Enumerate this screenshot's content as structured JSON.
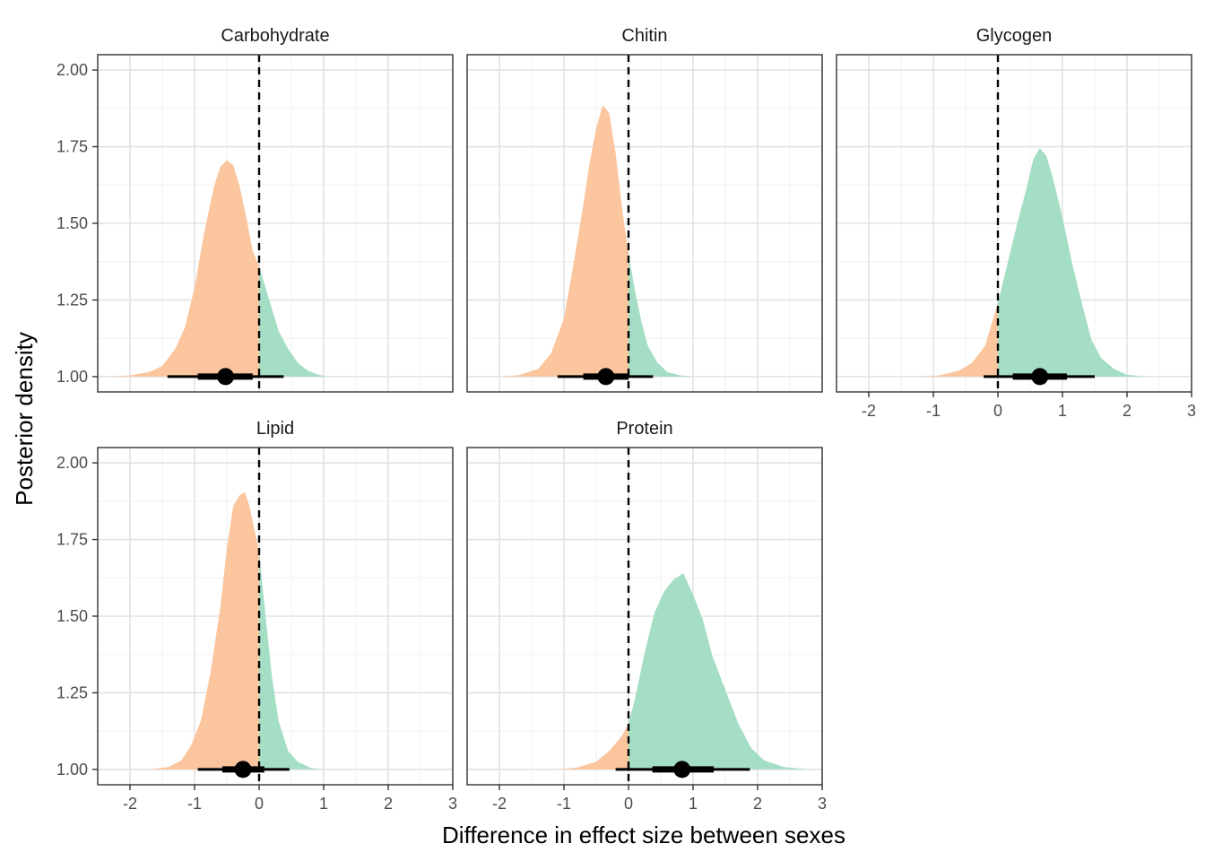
{
  "chart_data": {
    "type": "area",
    "xlabel": "Difference in effect size between sexes",
    "ylabel": "Posterior density",
    "xlim": [
      -2.5,
      3.0
    ],
    "ylim": [
      0.95,
      2.05
    ],
    "x_ticks": [
      "-2",
      "-1",
      "0",
      "1",
      "2",
      "3"
    ],
    "y_ticks": [
      "1.00",
      "1.25",
      "1.50",
      "1.75",
      "2.00"
    ],
    "reference_line_x": 0,
    "colors": {
      "negative": "#FBC59E",
      "positive": "#A4DEC4",
      "interval": "#000000",
      "reference": "#000000"
    },
    "grid": true,
    "panels": [
      {
        "name": "Carbohydrate",
        "density": {
          "x": [
            -2.3,
            -2.0,
            -1.7,
            -1.5,
            -1.3,
            -1.15,
            -1.0,
            -0.85,
            -0.7,
            -0.6,
            -0.5,
            -0.4,
            -0.3,
            -0.2,
            -0.1,
            0.0,
            0.1,
            0.2,
            0.3,
            0.45,
            0.6,
            0.75,
            0.9,
            1.05
          ],
          "y": [
            1.0,
            1.004,
            1.015,
            1.035,
            1.09,
            1.16,
            1.29,
            1.47,
            1.62,
            1.685,
            1.705,
            1.69,
            1.62,
            1.52,
            1.41,
            1.36,
            1.29,
            1.22,
            1.15,
            1.09,
            1.045,
            1.02,
            1.007,
            1.0
          ]
        },
        "median": -0.52,
        "interval_66": [
          -0.95,
          -0.1
        ],
        "interval_95": [
          -1.42,
          0.38
        ]
      },
      {
        "name": "Chitin",
        "density": {
          "x": [
            -2.0,
            -1.7,
            -1.4,
            -1.2,
            -1.0,
            -0.85,
            -0.7,
            -0.6,
            -0.5,
            -0.4,
            -0.3,
            -0.2,
            -0.1,
            0.0,
            0.1,
            0.2,
            0.3,
            0.45,
            0.6,
            0.8,
            1.0
          ],
          "y": [
            1.0,
            1.005,
            1.025,
            1.075,
            1.19,
            1.37,
            1.56,
            1.7,
            1.81,
            1.885,
            1.86,
            1.73,
            1.55,
            1.4,
            1.28,
            1.18,
            1.1,
            1.045,
            1.015,
            1.004,
            1.0
          ]
        },
        "median": -0.35,
        "interval_66": [
          -0.7,
          0.0
        ],
        "interval_95": [
          -1.1,
          0.38
        ]
      },
      {
        "name": "Glycogen",
        "density": {
          "x": [
            -1.2,
            -0.9,
            -0.6,
            -0.4,
            -0.2,
            0.0,
            0.15,
            0.3,
            0.45,
            0.55,
            0.65,
            0.75,
            0.85,
            1.0,
            1.15,
            1.3,
            1.45,
            1.6,
            1.8,
            2.0,
            2.3
          ],
          "y": [
            1.0,
            1.004,
            1.02,
            1.045,
            1.1,
            1.24,
            1.37,
            1.5,
            1.62,
            1.71,
            1.745,
            1.72,
            1.65,
            1.52,
            1.37,
            1.24,
            1.12,
            1.06,
            1.025,
            1.006,
            1.0
          ]
        },
        "median": 0.65,
        "interval_66": [
          0.23,
          1.07
        ],
        "interval_95": [
          -0.22,
          1.5
        ]
      },
      {
        "name": "Lipid",
        "density": {
          "x": [
            -1.7,
            -1.4,
            -1.2,
            -1.05,
            -0.9,
            -0.75,
            -0.6,
            -0.5,
            -0.4,
            -0.3,
            -0.22,
            -0.15,
            -0.05,
            0.0,
            0.1,
            0.2,
            0.3,
            0.45,
            0.6,
            0.8,
            1.0
          ],
          "y": [
            1.0,
            1.008,
            1.03,
            1.08,
            1.16,
            1.32,
            1.53,
            1.72,
            1.86,
            1.895,
            1.905,
            1.86,
            1.76,
            1.71,
            1.5,
            1.3,
            1.16,
            1.06,
            1.025,
            1.005,
            1.0
          ]
        },
        "median": -0.25,
        "interval_66": [
          -0.57,
          0.08
        ],
        "interval_95": [
          -0.95,
          0.47
        ]
      },
      {
        "name": "Protein",
        "density": {
          "x": [
            -1.1,
            -0.8,
            -0.5,
            -0.3,
            -0.1,
            0.0,
            0.1,
            0.25,
            0.4,
            0.55,
            0.7,
            0.85,
            1.0,
            1.15,
            1.3,
            1.5,
            1.7,
            1.9,
            2.1,
            2.4,
            2.8
          ],
          "y": [
            1.0,
            1.006,
            1.025,
            1.06,
            1.11,
            1.15,
            1.23,
            1.38,
            1.51,
            1.58,
            1.62,
            1.64,
            1.57,
            1.49,
            1.37,
            1.26,
            1.15,
            1.07,
            1.03,
            1.008,
            1.0
          ]
        },
        "median": 0.83,
        "interval_66": [
          0.37,
          1.32
        ],
        "interval_95": [
          -0.2,
          1.88
        ]
      }
    ]
  }
}
